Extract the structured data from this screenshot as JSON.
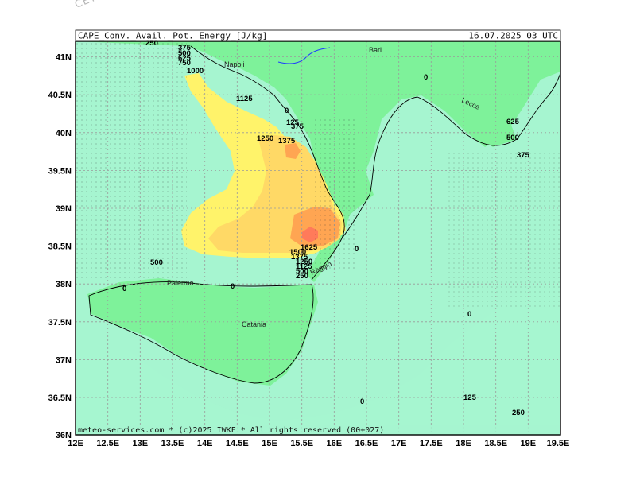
{
  "watermark": "CETA - m",
  "header": {
    "title": "CAPE_Conv._Avail._Pot._Energy_[J/kg]",
    "valid": "16.07.2025 03 UTC"
  },
  "footer": "meteo-services.com * (c)2025 IWKF * All rights reserved (00+027)",
  "axes": {
    "lat_labels": [
      "41N",
      "40.5N",
      "40N",
      "39.5N",
      "39N",
      "38.5N",
      "38N",
      "37.5N",
      "37N",
      "36.5N",
      "36N"
    ],
    "lon_labels": [
      "12E",
      "12.5E",
      "13E",
      "13.5E",
      "14E",
      "14.5E",
      "15E",
      "15.5E",
      "16E",
      "16.5E",
      "17E",
      "17.5E",
      "18E",
      "18.5E",
      "19E",
      "19.5E"
    ]
  },
  "cities": [
    {
      "name": "Bari"
    },
    {
      "name": "Napoli"
    },
    {
      "name": "Lecce"
    },
    {
      "name": "Palermo"
    },
    {
      "name": "Catania"
    },
    {
      "name": "Reggio"
    }
  ],
  "contour_labels": [
    "250",
    "375",
    "500",
    "625",
    "750",
    "875",
    "1000",
    "1125",
    "0",
    "125",
    "375",
    "1250",
    "1375",
    "1625",
    "1500",
    "1375",
    "1250",
    "1125",
    "1000",
    "875",
    "750",
    "625",
    "500",
    "375",
    "250",
    "125",
    "0",
    "625",
    "500",
    "375",
    "0",
    "500",
    "0",
    "0",
    "0",
    "0",
    "125",
    "250"
  ],
  "colors": {
    "sea": "#a6f5d0",
    "land": "#7ef29a",
    "band_250_500": "#66e88a",
    "band_1000": "#fff36a",
    "band_1250": "#ffd966",
    "band_1500": "#ffa552",
    "band_1625": "#ff7a5a",
    "grid": "#9a9a9a",
    "coast": "#000000",
    "river": "#1e3cff"
  }
}
